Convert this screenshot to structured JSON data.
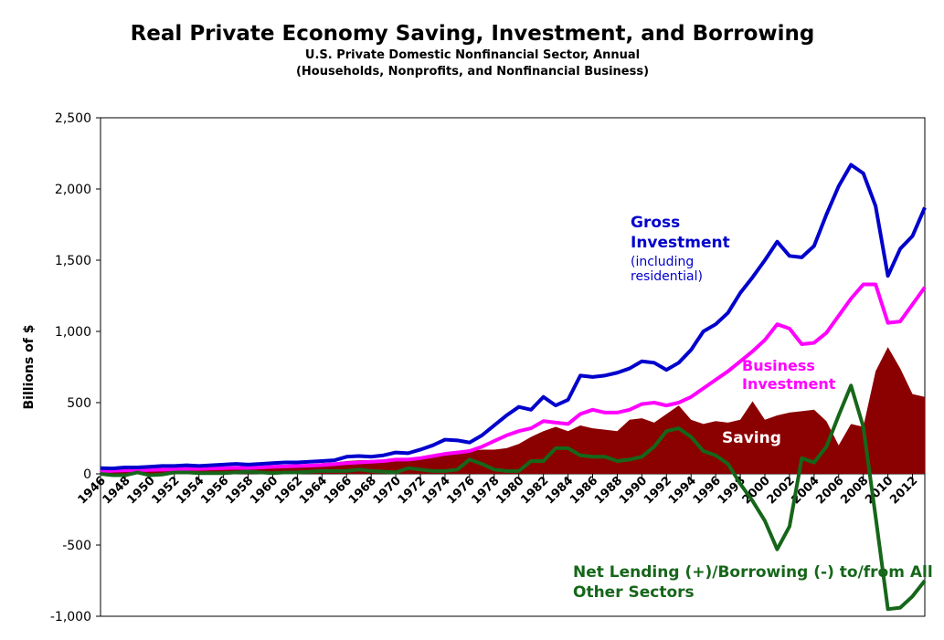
{
  "chart_data": {
    "type": "line",
    "title": "Real Private Economy Saving, Investment, and Borrowing",
    "subtitle": [
      "U.S. Private Domestic Nonfinancial Sector, Annual",
      "(Households, Nonprofits, and Nonfinancial Business)"
    ],
    "y_label": "Billions of $",
    "x": [
      1946,
      1947,
      1948,
      1949,
      1950,
      1951,
      1952,
      1953,
      1954,
      1955,
      1956,
      1957,
      1958,
      1959,
      1960,
      1961,
      1962,
      1963,
      1964,
      1965,
      1966,
      1967,
      1968,
      1969,
      1970,
      1971,
      1972,
      1973,
      1974,
      1975,
      1976,
      1977,
      1978,
      1979,
      1980,
      1981,
      1982,
      1983,
      1984,
      1985,
      1986,
      1987,
      1988,
      1989,
      1990,
      1991,
      1992,
      1993,
      1994,
      1995,
      1996,
      1997,
      1998,
      1999,
      2000,
      2001,
      2002,
      2003,
      2004,
      2005,
      2006,
      2007,
      2008,
      2009,
      2010,
      2011,
      2012,
      2013
    ],
    "xlim": [
      1946,
      2013
    ],
    "xticks": [
      1946,
      1948,
      1950,
      1952,
      1954,
      1956,
      1958,
      1960,
      1962,
      1964,
      1966,
      1968,
      1970,
      1972,
      1974,
      1976,
      1978,
      1980,
      1982,
      1984,
      1986,
      1988,
      1990,
      1992,
      1994,
      1996,
      1998,
      2000,
      2002,
      2004,
      2006,
      2008,
      2010,
      2012
    ],
    "ylim": [
      -1000,
      2500
    ],
    "yticks": [
      {
        "value": -1000,
        "label": "-1,000"
      },
      -500,
      0,
      500,
      {
        "value": 1000,
        "label": "1,000"
      },
      {
        "value": 1500,
        "label": "1,500"
      },
      {
        "value": 2000,
        "label": "2,000"
      },
      {
        "value": 2500,
        "label": "2,500"
      }
    ],
    "series": [
      {
        "name": "Saving",
        "style": "area",
        "color": "#8b0000",
        "values": [
          10,
          15,
          15,
          20,
          20,
          25,
          25,
          30,
          30,
          35,
          35,
          40,
          40,
          45,
          50,
          55,
          60,
          65,
          75,
          80,
          90,
          95,
          95,
          100,
          100,
          110,
          120,
          130,
          140,
          150,
          160,
          170,
          170,
          180,
          210,
          260,
          300,
          330,
          300,
          340,
          320,
          310,
          300,
          380,
          390,
          360,
          420,
          480,
          380,
          350,
          370,
          360,
          380,
          510,
          380,
          410,
          430,
          440,
          450,
          370,
          200,
          350,
          330,
          720,
          890,
          740,
          560,
          540
        ]
      },
      {
        "name": "Business Investment",
        "style": "line",
        "color": "#ff00ff",
        "values": [
          20,
          22,
          25,
          25,
          28,
          30,
          32,
          35,
          35,
          38,
          40,
          42,
          42,
          45,
          50,
          52,
          55,
          58,
          62,
          68,
          75,
          80,
          85,
          90,
          100,
          100,
          110,
          125,
          140,
          150,
          160,
          190,
          230,
          270,
          300,
          320,
          370,
          360,
          350,
          420,
          450,
          430,
          430,
          450,
          490,
          500,
          480,
          500,
          540,
          600,
          660,
          720,
          790,
          860,
          940,
          1050,
          1020,
          910,
          920,
          990,
          1110,
          1230,
          1330,
          1330,
          1060,
          1070,
          1190,
          1310
        ]
      },
      {
        "name": "Gross Investment",
        "note": "(including residential)",
        "style": "line",
        "color": "#0000cc",
        "values": [
          40,
          38,
          45,
          45,
          50,
          55,
          55,
          60,
          55,
          60,
          65,
          70,
          65,
          70,
          75,
          80,
          80,
          85,
          90,
          95,
          120,
          125,
          120,
          130,
          150,
          145,
          170,
          200,
          240,
          235,
          220,
          270,
          340,
          410,
          470,
          450,
          540,
          480,
          520,
          690,
          680,
          690,
          710,
          740,
          790,
          780,
          730,
          780,
          870,
          1000,
          1050,
          1130,
          1270,
          1380,
          1500,
          1630,
          1530,
          1520,
          1600,
          1820,
          2020,
          2170,
          2110,
          1880,
          1390,
          1580,
          1670,
          1870
        ]
      },
      {
        "name": "Net Lending (+)/Borrowing (-) to/from All Other Sectors",
        "style": "line",
        "color": "#16661a",
        "values": [
          0,
          -10,
          -10,
          10,
          -10,
          -5,
          10,
          10,
          5,
          5,
          5,
          10,
          15,
          10,
          5,
          10,
          10,
          15,
          20,
          20,
          20,
          30,
          20,
          15,
          10,
          40,
          30,
          20,
          20,
          30,
          100,
          70,
          30,
          20,
          20,
          90,
          90,
          180,
          180,
          130,
          120,
          120,
          90,
          100,
          120,
          190,
          300,
          320,
          260,
          160,
          130,
          70,
          -70,
          -190,
          -330,
          -530,
          -370,
          110,
          80,
          190,
          410,
          620,
          330,
          -300,
          -950,
          -940,
          -860,
          -750
        ]
      }
    ]
  }
}
